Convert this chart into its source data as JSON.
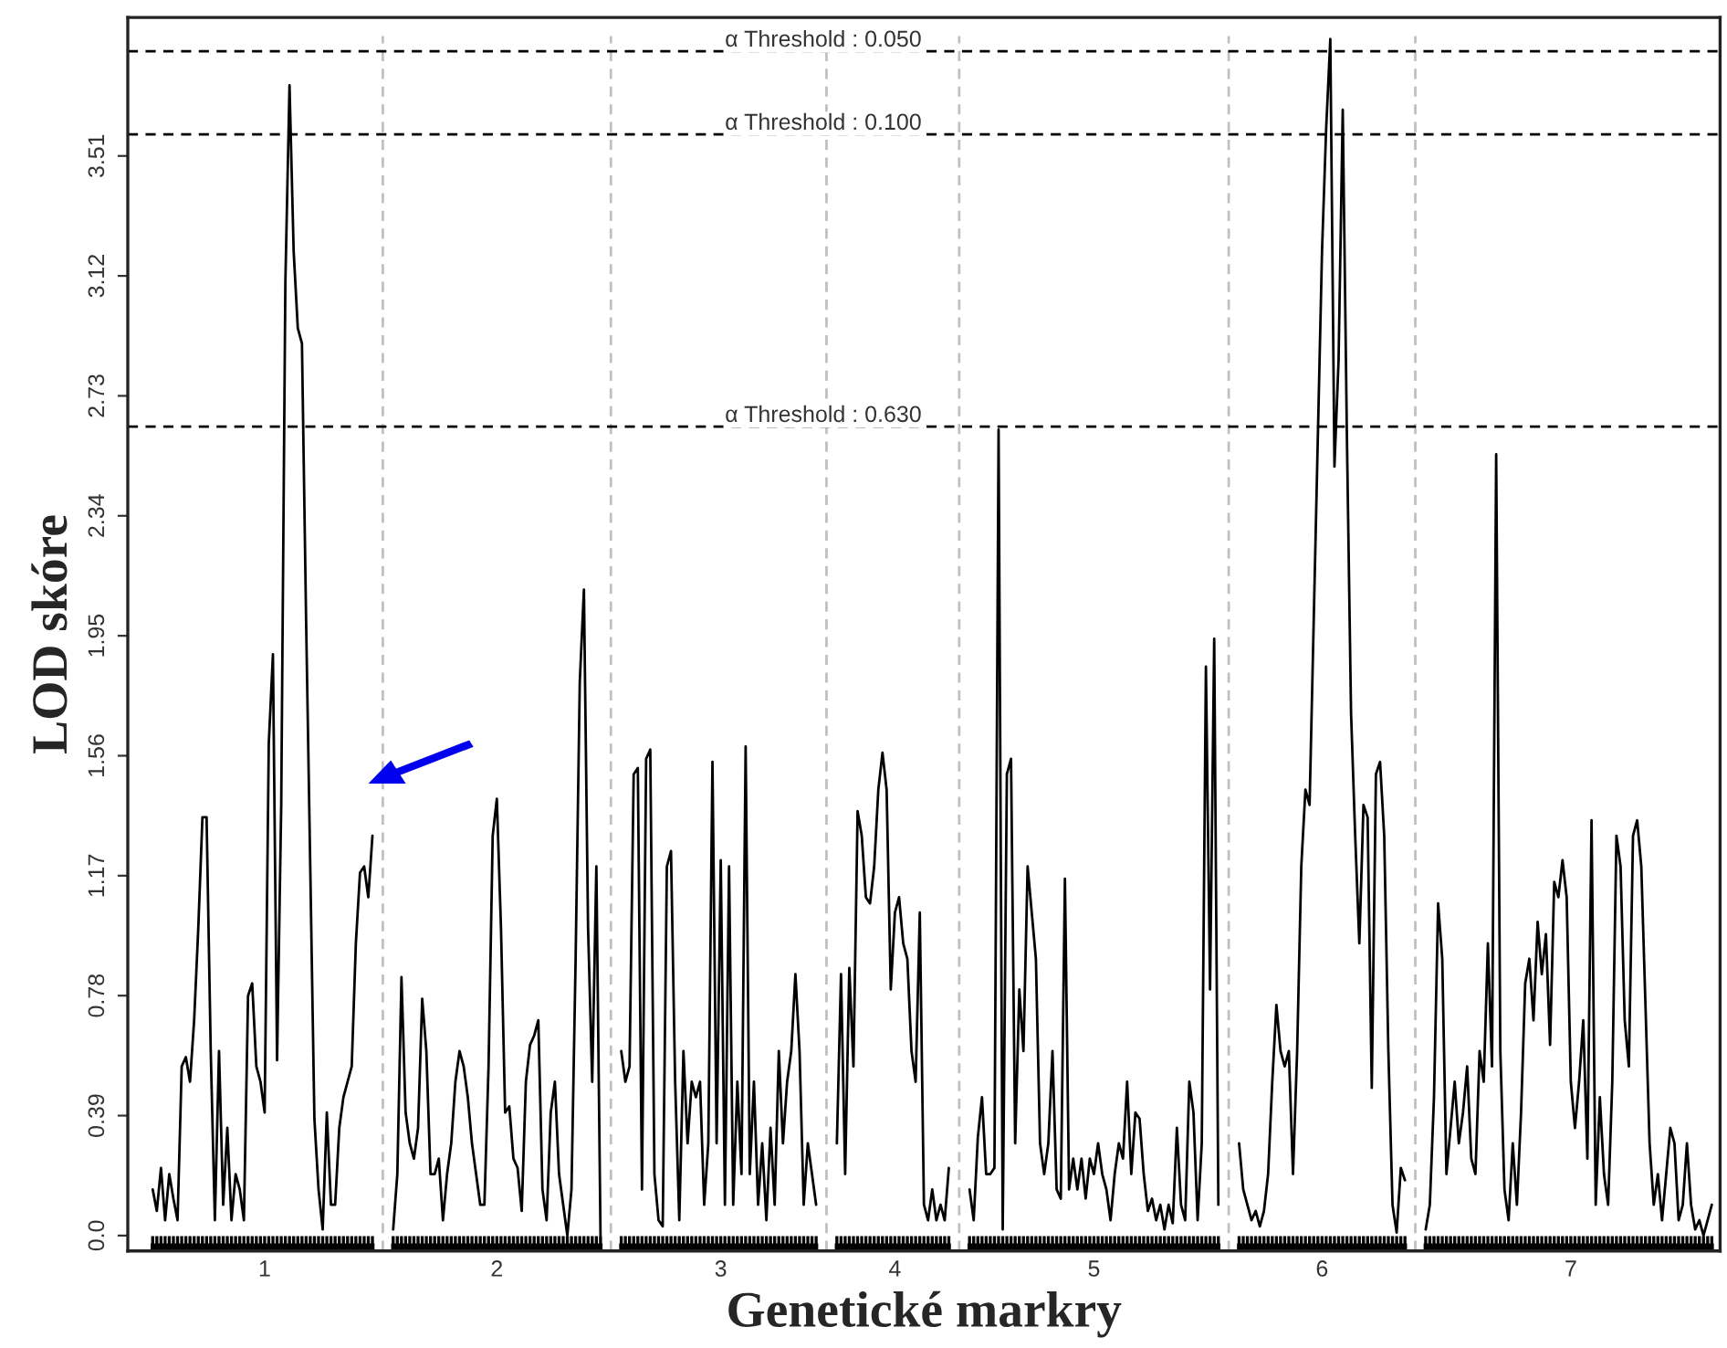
{
  "chart_data": {
    "type": "line",
    "xlabel": "Genetické markry",
    "ylabel": "LOD skóre",
    "categories": [
      null,
      null,
      null,
      null,
      null,
      null,
      null,
      null,
      null,
      null,
      null,
      null,
      null,
      null,
      null,
      null,
      null,
      null,
      null,
      null,
      null,
      null,
      null,
      null,
      null,
      null,
      null,
      "1",
      null,
      null,
      null,
      null,
      null,
      null,
      null,
      null,
      null,
      null,
      null,
      null,
      null,
      null,
      null,
      null,
      null,
      null,
      null,
      null,
      null,
      null,
      null,
      null,
      null,
      null,
      null,
      null,
      null,
      null,
      null,
      null,
      null,
      null,
      null,
      null,
      null,
      null,
      null,
      null,
      null,
      null,
      null,
      null,
      null,
      null,
      null,
      null,
      null,
      null,
      null,
      null,
      null,
      null,
      null,
      "2",
      null,
      null,
      null,
      null,
      null,
      null,
      null,
      null,
      null,
      null,
      null,
      null,
      null,
      null,
      null,
      null,
      null,
      null,
      null,
      null,
      null,
      null,
      null,
      null,
      null,
      null,
      null,
      null,
      null,
      null,
      null,
      null,
      null,
      null,
      null,
      null,
      null,
      null,
      null,
      null,
      null,
      null,
      null,
      null,
      null,
      null,
      null,
      null,
      null,
      null,
      null,
      null,
      null,
      "3",
      null,
      null,
      null,
      null,
      null,
      null,
      null,
      null,
      null,
      null,
      null,
      null,
      null,
      null,
      null,
      null,
      null,
      null,
      null,
      null,
      null,
      null,
      null,
      null,
      null,
      null,
      null,
      null,
      null,
      null,
      null,
      null,
      null,
      null,
      null,
      null,
      null,
      null,
      null,
      null,
      null,
      "4",
      null,
      null,
      null,
      null,
      null,
      null,
      null,
      null,
      null,
      null,
      null,
      null,
      null,
      null,
      null,
      null,
      null,
      null,
      null,
      null,
      null,
      null,
      null,
      null,
      null,
      null,
      null,
      null,
      null,
      null,
      null,
      null,
      null,
      null,
      null,
      null,
      null,
      null,
      null,
      null,
      null,
      null,
      null,
      null,
      null,
      null,
      null,
      "5",
      null,
      null,
      null,
      null,
      null,
      null,
      null,
      null,
      null,
      null,
      null,
      null,
      null,
      null,
      null,
      null,
      null,
      null,
      null,
      null,
      null,
      null,
      null,
      null,
      null,
      null,
      null,
      null,
      null,
      null,
      null,
      null,
      null,
      null,
      null,
      null,
      null,
      null,
      null,
      null,
      null,
      null,
      null,
      null,
      null,
      null,
      null,
      null,
      null,
      null,
      null,
      null,
      null,
      null,
      "6",
      null,
      null,
      null,
      null,
      null,
      null,
      null,
      null,
      null,
      null,
      null,
      null,
      null,
      null,
      null,
      null,
      null,
      null,
      null,
      null,
      null,
      null,
      null,
      null,
      null,
      null,
      null,
      null,
      null,
      null,
      null,
      null,
      null,
      null,
      null,
      null,
      null,
      null,
      null,
      null,
      null,
      null,
      null,
      null,
      null,
      null,
      null,
      null,
      null,
      null,
      null,
      null,
      null,
      null,
      null,
      null,
      null,
      null,
      null,
      "7",
      null,
      null,
      null,
      null,
      null,
      null,
      null,
      null,
      null,
      null,
      null,
      null,
      null,
      null,
      null,
      null,
      null,
      null,
      null,
      null,
      null,
      null,
      null,
      null,
      null,
      null,
      null,
      null,
      null,
      null,
      null,
      null,
      null,
      null
    ],
    "ylim": [
      -0.05,
      3.96
    ],
    "yticks": [
      {
        "value": 0,
        "label": "0.0"
      },
      0.39,
      0.78,
      1.17,
      1.56,
      1.95,
      2.34,
      2.73,
      3.12,
      3.51
    ],
    "line_style": "solid",
    "annotations": [
      {
        "text": "α Threshold : 0.050",
        "y": 3.85
      },
      {
        "text": "α Threshold : 0.100",
        "y": 3.58
      },
      {
        "text": "α Threshold : 0.630",
        "y": 2.63
      }
    ],
    "ref_lines": [
      {
        "axis": "y",
        "value": 3.85,
        "color": "#000000",
        "line_style": "dashed"
      },
      {
        "axis": "y",
        "value": 3.58,
        "color": "#000000",
        "line_style": "dashed"
      },
      {
        "axis": "y",
        "value": 2.63,
        "color": "#000000",
        "line_style": "dashed"
      }
    ],
    "series": [
      {
        "color": "#000000",
        "values": [
          0.15,
          0.08,
          0.22,
          0.05,
          0.2,
          0.12,
          0.05,
          0.55,
          0.58,
          0.5,
          0.7,
          1.0,
          1.36,
          1.36,
          0.6,
          0.05,
          0.6,
          0.1,
          0.35,
          0.05,
          0.2,
          0.15,
          0.05,
          0.78,
          0.82,
          0.55,
          0.5,
          0.4,
          1.6,
          1.89,
          0.57,
          1.4,
          3.1,
          3.74,
          3.2,
          2.95,
          2.9,
          2.0,
          1.2,
          0.38,
          0.15,
          0.02,
          0.4,
          0.1,
          0.1,
          0.35,
          0.45,
          0.5,
          0.55,
          0.95,
          1.18,
          1.2,
          1.1,
          1.3,
          null,
          null,
          null,
          null,
          0.02,
          0.2,
          0.84,
          0.4,
          0.3,
          0.25,
          0.35,
          0.77,
          0.6,
          0.2,
          0.2,
          0.25,
          0.05,
          0.2,
          0.3,
          0.5,
          0.6,
          0.55,
          0.45,
          0.3,
          0.2,
          0.1,
          0.1,
          0.55,
          1.3,
          1.42,
          1.0,
          0.4,
          0.42,
          0.25,
          0.22,
          0.08,
          0.5,
          0.62,
          0.65,
          0.7,
          0.15,
          0.05,
          0.4,
          0.5,
          0.2,
          0.1,
          0.0,
          0.15,
          0.9,
          1.8,
          2.1,
          1.0,
          0.5,
          1.2,
          0.0,
          null,
          null,
          null,
          null,
          0.6,
          0.5,
          0.55,
          1.5,
          1.52,
          0.15,
          1.55,
          1.58,
          0.2,
          0.05,
          0.03,
          1.2,
          1.25,
          0.5,
          0.05,
          0.6,
          0.3,
          0.5,
          0.45,
          0.5,
          0.1,
          0.3,
          1.54,
          0.3,
          1.22,
          0.1,
          1.2,
          0.1,
          0.5,
          0.2,
          1.59,
          0.2,
          0.5,
          0.1,
          0.3,
          0.05,
          0.35,
          0.1,
          0.6,
          0.3,
          0.5,
          0.6,
          0.85,
          0.6,
          0.1,
          0.3,
          0.2,
          0.1,
          null,
          null,
          null,
          null,
          0.3,
          0.85,
          0.2,
          0.87,
          0.55,
          1.38,
          1.3,
          1.1,
          1.08,
          1.2,
          1.45,
          1.57,
          1.45,
          0.8,
          1.05,
          1.1,
          0.95,
          0.9,
          0.6,
          0.5,
          1.05,
          0.1,
          0.05,
          0.15,
          0.05,
          0.1,
          0.05,
          0.22,
          null,
          null,
          null,
          null,
          0.15,
          0.05,
          0.32,
          0.45,
          0.2,
          0.2,
          0.22,
          2.62,
          0.02,
          1.5,
          1.55,
          0.3,
          0.8,
          0.6,
          1.2,
          1.05,
          0.9,
          0.3,
          0.2,
          0.3,
          0.6,
          0.15,
          0.12,
          1.16,
          0.15,
          0.25,
          0.15,
          0.25,
          0.12,
          0.25,
          0.2,
          0.3,
          0.2,
          0.15,
          0.05,
          0.2,
          0.3,
          0.25,
          0.5,
          0.2,
          0.4,
          0.38,
          0.2,
          0.08,
          0.12,
          0.05,
          0.1,
          0.02,
          0.1,
          0.04,
          0.35,
          0.1,
          0.05,
          0.5,
          0.4,
          0.05,
          0.3,
          1.85,
          0.8,
          1.94,
          0.1,
          null,
          null,
          null,
          null,
          0.3,
          0.15,
          0.1,
          0.05,
          0.08,
          0.03,
          0.08,
          0.2,
          0.5,
          0.75,
          0.6,
          0.55,
          0.6,
          0.2,
          0.6,
          1.2,
          1.45,
          1.4,
          2.0,
          2.6,
          3.2,
          3.6,
          3.89,
          2.5,
          2.85,
          3.66,
          2.6,
          1.7,
          1.3,
          0.95,
          1.4,
          1.36,
          0.48,
          1.5,
          1.54,
          1.3,
          0.6,
          0.1,
          0.01,
          0.22,
          0.18,
          null,
          null,
          null,
          null,
          0.02,
          0.1,
          0.45,
          1.08,
          0.9,
          0.2,
          0.35,
          0.5,
          0.3,
          0.4,
          0.55,
          0.25,
          0.2,
          0.6,
          0.5,
          0.95,
          0.55,
          2.54,
          0.6,
          0.15,
          0.05,
          0.3,
          0.1,
          0.4,
          0.82,
          0.9,
          0.7,
          1.02,
          0.85,
          0.98,
          0.62,
          1.15,
          1.1,
          1.22,
          1.1,
          0.5,
          0.35,
          0.5,
          0.7,
          0.25,
          1.35,
          0.1,
          0.45,
          0.2,
          0.1,
          0.5,
          1.3,
          1.2,
          0.7,
          0.55,
          1.3,
          1.35,
          1.2,
          0.75,
          0.3,
          0.1,
          0.2,
          0.05,
          0.2,
          0.35,
          0.3,
          0.05,
          0.1,
          0.3,
          0.1,
          0.02,
          0.05,
          0.0,
          0.05,
          0.1
        ]
      }
    ]
  }
}
